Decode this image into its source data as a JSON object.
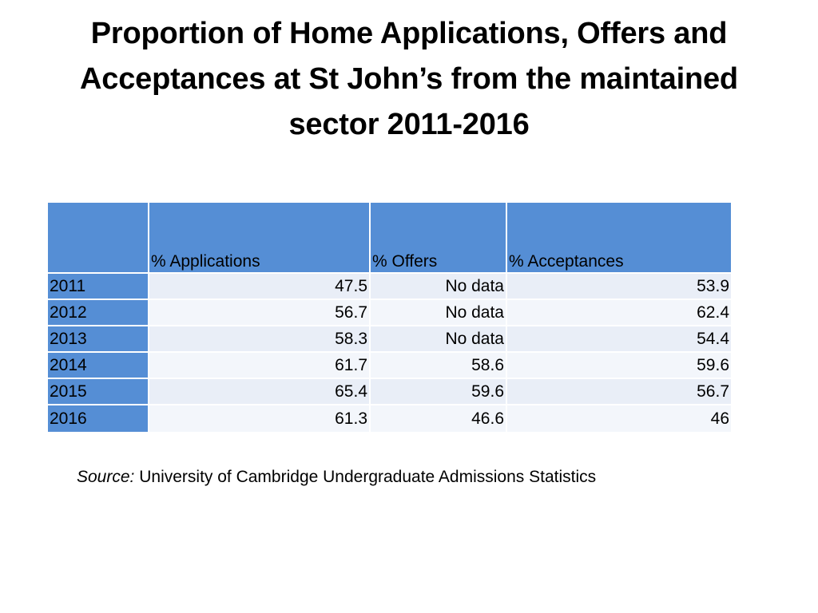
{
  "title": {
    "line1": "Proportion of Home Applications, Offers and",
    "line2": "Acceptances at St John’s from the maintained",
    "line3": "sector 2011-2016"
  },
  "colors": {
    "header_blue": "#558ed5",
    "cell_light": "#e9eef7"
  },
  "chart_data": {
    "type": "table",
    "title": "Proportion of Home Applications, Offers and Acceptances at St John’s from the maintained sector 2011-2016",
    "columns": [
      "",
      "% Applications",
      "% Offers",
      "% Acceptances"
    ],
    "rows": [
      {
        "year": "2011",
        "applications": "47.5",
        "offers": "No data",
        "acceptances": "53.9"
      },
      {
        "year": "2012",
        "applications": "56.7",
        "offers": "No data",
        "acceptances": "62.4"
      },
      {
        "year": "2013",
        "applications": "58.3",
        "offers": "No data",
        "acceptances": "54.4"
      },
      {
        "year": "2014",
        "applications": "61.7",
        "offers": "58.6",
        "acceptances": "59.6"
      },
      {
        "year": "2015",
        "applications": "65.4",
        "offers": "59.6",
        "acceptances": "56.7"
      },
      {
        "year": "2016",
        "applications": "61.3",
        "offers": "46.6",
        "acceptances": "46"
      }
    ]
  },
  "source": {
    "label": "Source:",
    "text": "University of Cambridge Undergraduate Admissions Statistics"
  }
}
